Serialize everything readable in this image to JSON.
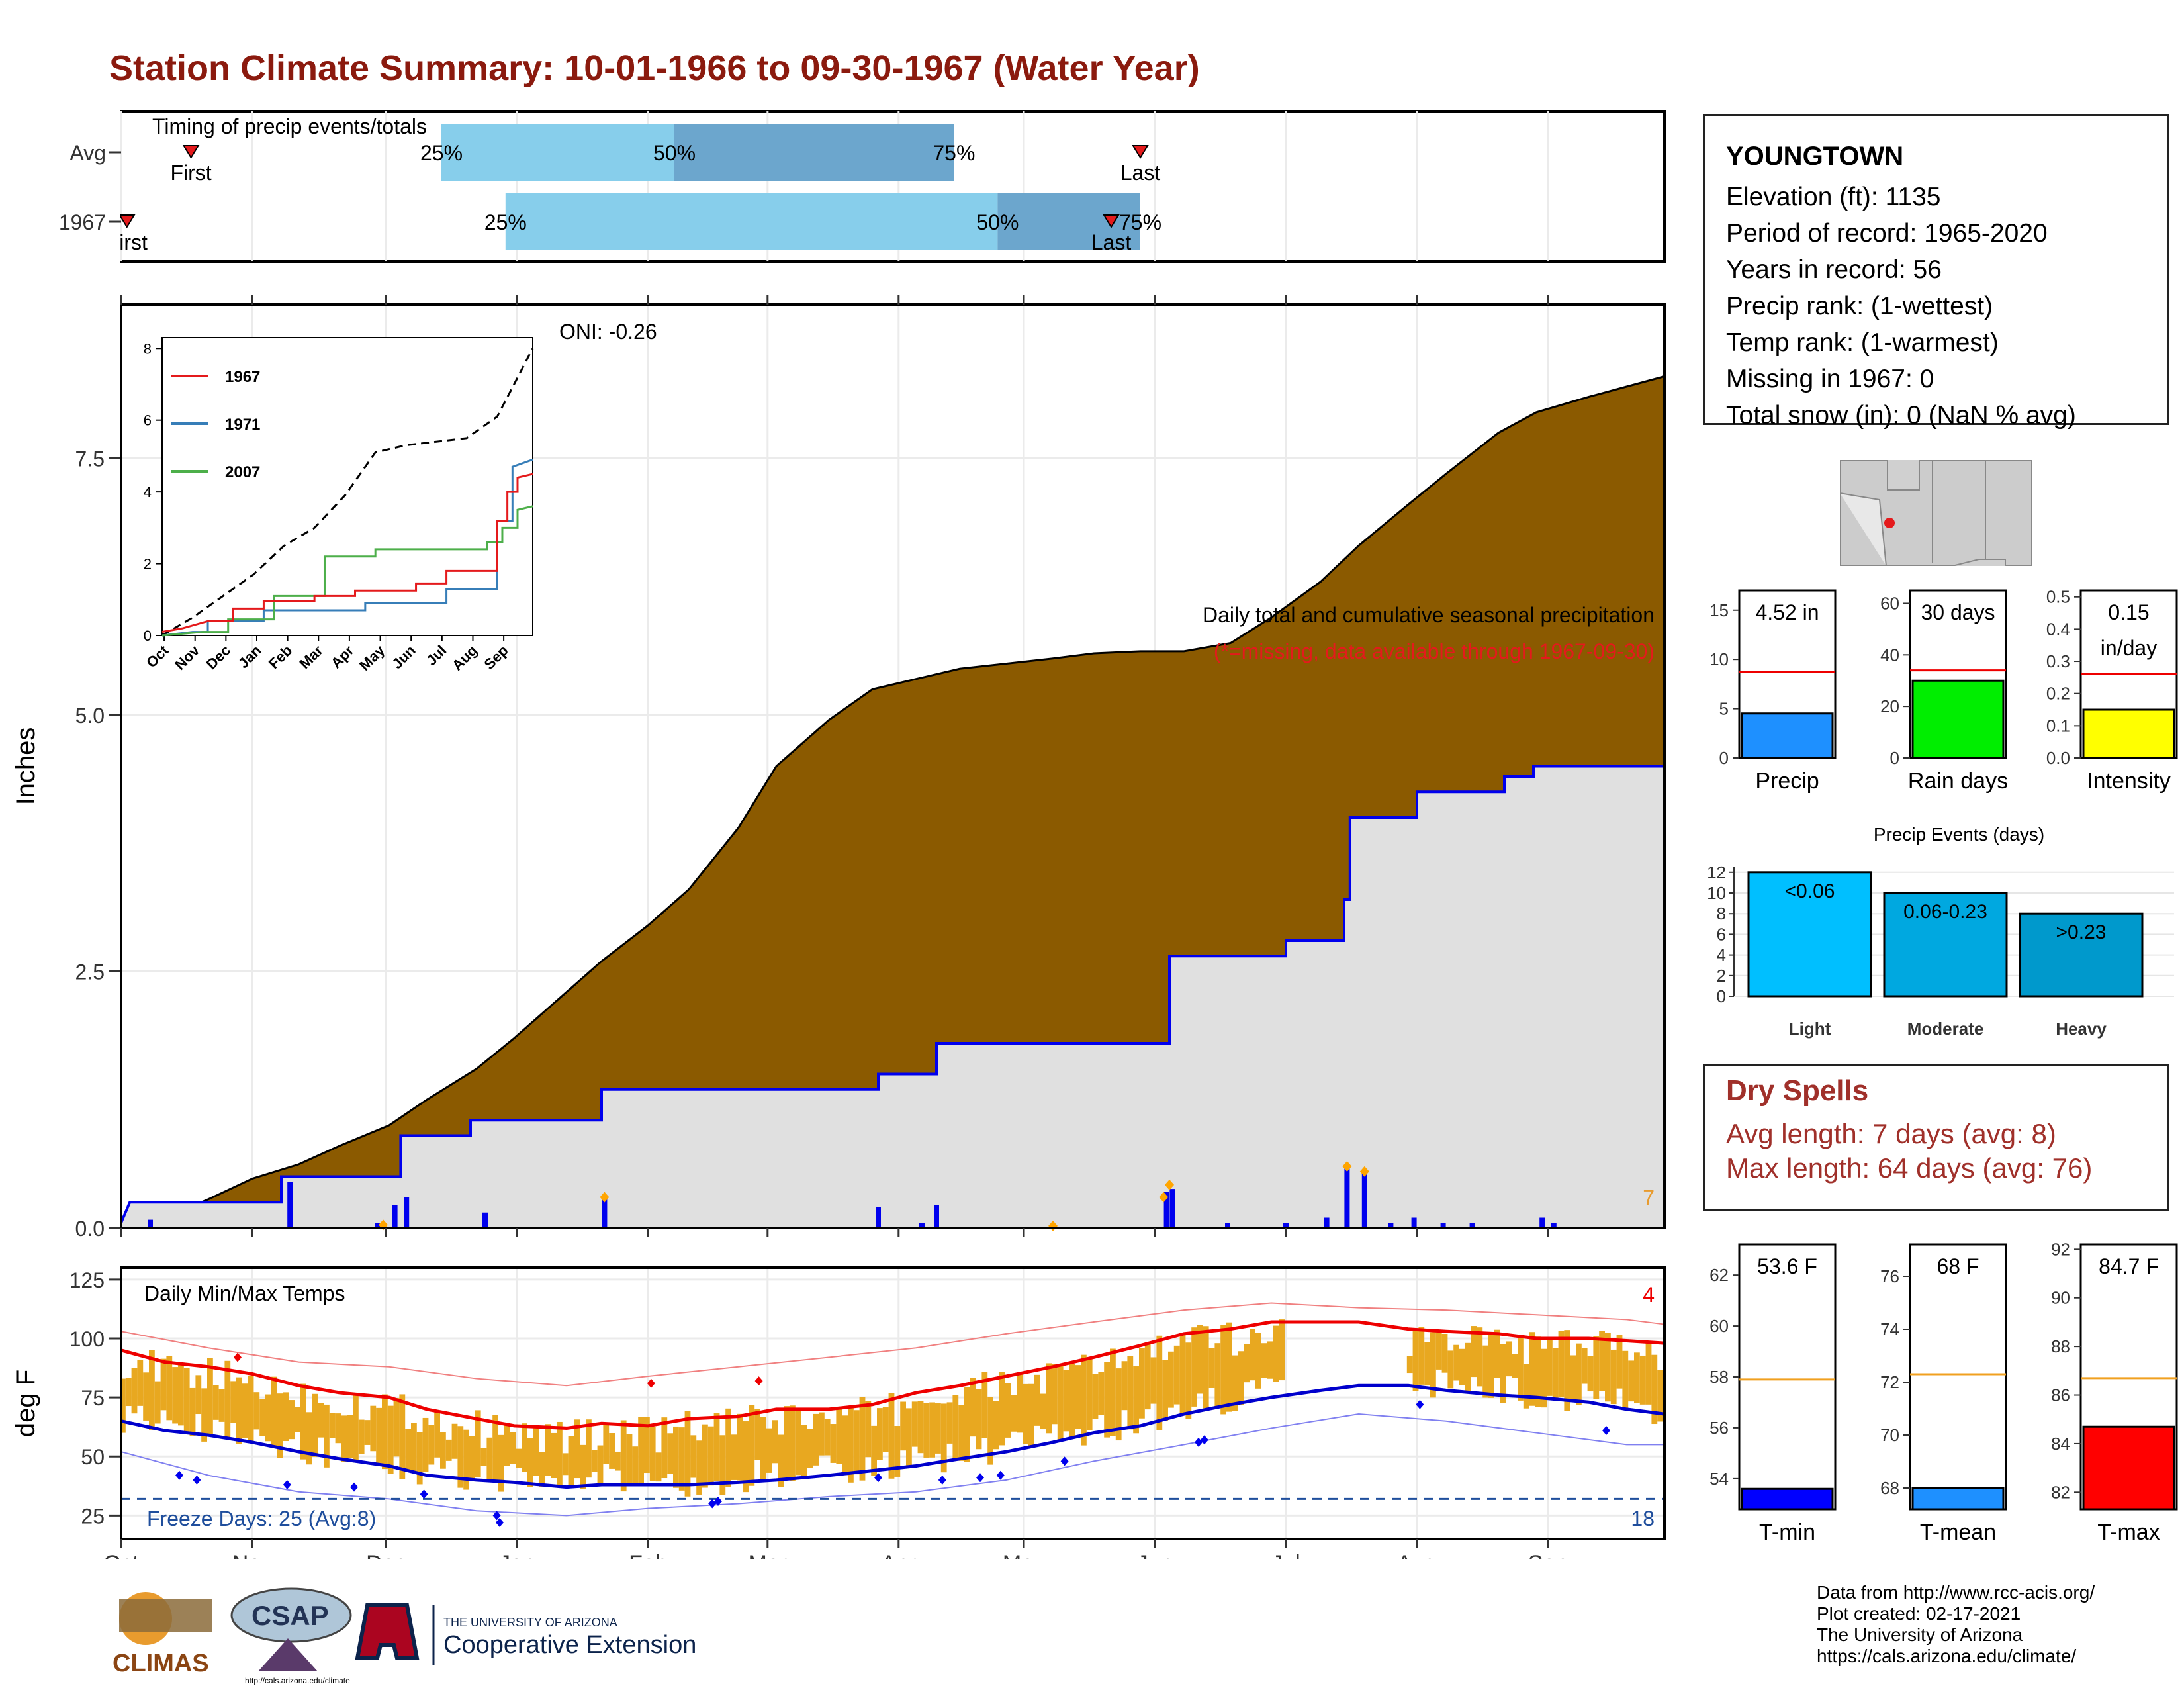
{
  "title": "Station Climate Summary: 10-01-1966 to 09-30-1967 (Water Year)",
  "months": [
    "Oct",
    "Nov",
    "Dec",
    "Jan",
    "Feb",
    "Mar",
    "Apr",
    "May",
    "Jun",
    "Jul",
    "Aug",
    "Sep"
  ],
  "timing": {
    "label": "Timing of precip events/totals",
    "rows": [
      {
        "name": "Avg",
        "first_label": "First",
        "first_day": 24,
        "last_label": "Last",
        "last_day": 350,
        "q25_day": 110,
        "q50_day": 190,
        "q75_day": 286,
        "q25_label": "25%",
        "q50_label": "50%",
        "q75_label": "75%"
      },
      {
        "name": "1967",
        "first_label": "First",
        "first_day": 2,
        "last_label": "Last",
        "last_day": 340,
        "q25_day": 132,
        "q50_day": 301,
        "q75_day": 350,
        "q25_label": "25%",
        "q50_label": "50%",
        "q75_label": "75%"
      }
    ]
  },
  "precip": {
    "ylabel": "Inches",
    "note1": "Daily total and cumulative seasonal precipitation",
    "note2": "(*=missing, data available through 1967-09-30)",
    "oni": "ONI: -0.26",
    "corner_value": "7",
    "yticks": [
      0.0,
      2.5,
      5.0,
      7.5
    ],
    "ytick_labels": [
      "0.0",
      "2.5",
      "5.0",
      "7.5"
    ],
    "ylim": [
      0,
      9
    ],
    "cum_avg": [
      [
        0,
        0
      ],
      [
        15,
        0.1
      ],
      [
        30,
        0.28
      ],
      [
        45,
        0.48
      ],
      [
        61,
        0.62
      ],
      [
        75,
        0.8
      ],
      [
        92,
        1.0
      ],
      [
        105,
        1.25
      ],
      [
        122,
        1.55
      ],
      [
        135,
        1.85
      ],
      [
        153,
        2.3
      ],
      [
        165,
        2.6
      ],
      [
        181,
        2.95
      ],
      [
        195,
        3.3
      ],
      [
        212,
        3.9
      ],
      [
        225,
        4.5
      ],
      [
        243,
        4.95
      ],
      [
        258,
        5.25
      ],
      [
        273,
        5.35
      ],
      [
        288,
        5.45
      ],
      [
        304,
        5.5
      ],
      [
        320,
        5.55
      ],
      [
        334,
        5.6
      ],
      [
        350,
        5.62
      ],
      [
        365,
        5.62
      ],
      [
        381,
        5.7
      ],
      [
        395,
        5.95
      ],
      [
        412,
        6.3
      ],
      [
        425,
        6.65
      ],
      [
        442,
        7.05
      ],
      [
        455,
        7.35
      ],
      [
        473,
        7.75
      ],
      [
        486,
        7.95
      ],
      [
        504,
        8.1
      ],
      [
        517,
        8.2
      ],
      [
        530,
        8.3
      ]
    ],
    "cum_obs": [
      [
        0,
        0.05
      ],
      [
        3,
        0.25
      ],
      [
        55,
        0.25
      ],
      [
        55,
        0.5
      ],
      [
        96,
        0.5
      ],
      [
        96,
        0.9
      ],
      [
        120,
        0.9
      ],
      [
        120,
        1.05
      ],
      [
        165,
        1.05
      ],
      [
        165,
        1.35
      ],
      [
        260,
        1.35
      ],
      [
        260,
        1.5
      ],
      [
        280,
        1.5
      ],
      [
        280,
        1.8
      ],
      [
        360,
        1.8
      ],
      [
        360,
        2.65
      ],
      [
        400,
        2.65
      ],
      [
        400,
        2.8
      ],
      [
        420,
        2.8
      ],
      [
        420,
        3.2
      ],
      [
        422,
        3.2
      ],
      [
        422,
        4.0
      ],
      [
        445,
        4.0
      ],
      [
        445,
        4.25
      ],
      [
        475,
        4.25
      ],
      [
        475,
        4.4
      ],
      [
        485,
        4.4
      ],
      [
        485,
        4.5
      ],
      [
        530,
        4.5
      ]
    ],
    "daily": [
      [
        10,
        0.08
      ],
      [
        58,
        0.45
      ],
      [
        88,
        0.05
      ],
      [
        94,
        0.22
      ],
      [
        98,
        0.3
      ],
      [
        125,
        0.15
      ],
      [
        166,
        0.28
      ],
      [
        260,
        0.2
      ],
      [
        275,
        0.05
      ],
      [
        280,
        0.22
      ],
      [
        359,
        0.35
      ],
      [
        361,
        0.38
      ],
      [
        380,
        0.05
      ],
      [
        400,
        0.05
      ],
      [
        414,
        0.1
      ],
      [
        421,
        0.6
      ],
      [
        427,
        0.55
      ],
      [
        436,
        0.05
      ],
      [
        444,
        0.1
      ],
      [
        454,
        0.05
      ],
      [
        464,
        0.05
      ],
      [
        488,
        0.1
      ],
      [
        492,
        0.05
      ]
    ],
    "daily_flags": [
      [
        90,
        0.03
      ],
      [
        166,
        0.3
      ],
      [
        358,
        0.3
      ],
      [
        360,
        0.42
      ],
      [
        421,
        0.6
      ],
      [
        427,
        0.55
      ],
      [
        320,
        0.02
      ]
    ]
  },
  "inset": {
    "legend": [
      "1967",
      "1971",
      "2007"
    ],
    "colors": [
      "#E41A1C",
      "#377EB8",
      "#4DAF4A"
    ],
    "yticks": [
      0,
      2,
      4,
      6,
      8
    ],
    "ytick_labels": [
      "0",
      "2",
      "4",
      "6",
      "8"
    ],
    "xlabels": [
      "Oct",
      "Nov",
      "Dec",
      "Jan",
      "Feb",
      "Mar",
      "Apr",
      "May",
      "Jun",
      "Jul",
      "Aug",
      "Sep"
    ],
    "avg_max": [
      [
        0,
        0
      ],
      [
        30,
        0.5
      ],
      [
        60,
        1.1
      ],
      [
        90,
        1.7
      ],
      [
        120,
        2.5
      ],
      [
        150,
        3.0
      ],
      [
        180,
        3.9
      ],
      [
        210,
        5.1
      ],
      [
        240,
        5.3
      ],
      [
        270,
        5.4
      ],
      [
        300,
        5.5
      ],
      [
        330,
        6.1
      ],
      [
        365,
        8.0
      ]
    ],
    "s1967": [
      [
        0,
        0.1
      ],
      [
        20,
        0.2
      ],
      [
        45,
        0.4
      ],
      [
        70,
        0.4
      ],
      [
        70,
        0.75
      ],
      [
        100,
        0.75
      ],
      [
        100,
        0.95
      ],
      [
        150,
        0.95
      ],
      [
        150,
        1.1
      ],
      [
        190,
        1.1
      ],
      [
        190,
        1.25
      ],
      [
        250,
        1.25
      ],
      [
        250,
        1.45
      ],
      [
        280,
        1.45
      ],
      [
        280,
        1.8
      ],
      [
        330,
        1.8
      ],
      [
        330,
        3.2
      ],
      [
        340,
        3.2
      ],
      [
        340,
        4.0
      ],
      [
        350,
        4.0
      ],
      [
        350,
        4.4
      ],
      [
        365,
        4.5
      ]
    ],
    "s1971": [
      [
        0,
        0
      ],
      [
        30,
        0.1
      ],
      [
        45,
        0.1
      ],
      [
        45,
        0.4
      ],
      [
        100,
        0.4
      ],
      [
        100,
        0.7
      ],
      [
        200,
        0.7
      ],
      [
        200,
        0.9
      ],
      [
        280,
        0.9
      ],
      [
        280,
        1.3
      ],
      [
        330,
        1.3
      ],
      [
        330,
        3.2
      ],
      [
        345,
        3.2
      ],
      [
        345,
        4.7
      ],
      [
        365,
        4.9
      ]
    ],
    "s2007": [
      [
        0,
        0
      ],
      [
        40,
        0.1
      ],
      [
        65,
        0.1
      ],
      [
        65,
        0.45
      ],
      [
        110,
        0.45
      ],
      [
        110,
        1.1
      ],
      [
        160,
        1.1
      ],
      [
        160,
        2.2
      ],
      [
        210,
        2.2
      ],
      [
        210,
        2.4
      ],
      [
        320,
        2.4
      ],
      [
        320,
        2.6
      ],
      [
        335,
        2.6
      ],
      [
        335,
        3.0
      ],
      [
        350,
        3.0
      ],
      [
        350,
        3.5
      ],
      [
        365,
        3.6
      ]
    ]
  },
  "temps": {
    "label": "Daily Min/Max Temps",
    "ylabel": "deg F",
    "freeze_label": "Freeze Days: 25 (Avg:8)",
    "freeze_value": "18",
    "corner_value": "4",
    "yticks": [
      25,
      50,
      75,
      100,
      125
    ],
    "ytick_labels": [
      "25",
      "50",
      "75",
      "100",
      "125"
    ],
    "ylim": [
      15,
      130
    ],
    "freeze_line": 32,
    "avg_max": [
      [
        0,
        95
      ],
      [
        15,
        90
      ],
      [
        30,
        88
      ],
      [
        45,
        85
      ],
      [
        61,
        80
      ],
      [
        75,
        77
      ],
      [
        92,
        75
      ],
      [
        105,
        70
      ],
      [
        122,
        66
      ],
      [
        135,
        63
      ],
      [
        153,
        62
      ],
      [
        165,
        64
      ],
      [
        181,
        63
      ],
      [
        195,
        66
      ],
      [
        212,
        67
      ],
      [
        225,
        70
      ],
      [
        243,
        70
      ],
      [
        258,
        72
      ],
      [
        273,
        77
      ],
      [
        288,
        80
      ],
      [
        304,
        84
      ],
      [
        320,
        88
      ],
      [
        334,
        92
      ],
      [
        350,
        97
      ],
      [
        365,
        102
      ],
      [
        381,
        104
      ],
      [
        395,
        107
      ],
      [
        412,
        107
      ],
      [
        425,
        107
      ],
      [
        442,
        104
      ],
      [
        455,
        103
      ],
      [
        473,
        102
      ],
      [
        486,
        100
      ],
      [
        504,
        100
      ],
      [
        517,
        99
      ],
      [
        530,
        98
      ]
    ],
    "avg_min": [
      [
        0,
        65
      ],
      [
        15,
        61
      ],
      [
        30,
        59
      ],
      [
        45,
        56
      ],
      [
        61,
        52
      ],
      [
        75,
        49
      ],
      [
        92,
        46
      ],
      [
        105,
        42
      ],
      [
        122,
        40
      ],
      [
        135,
        39
      ],
      [
        153,
        37
      ],
      [
        165,
        38
      ],
      [
        181,
        38
      ],
      [
        195,
        38
      ],
      [
        212,
        39
      ],
      [
        225,
        40
      ],
      [
        243,
        42
      ],
      [
        258,
        44
      ],
      [
        273,
        46
      ],
      [
        288,
        49
      ],
      [
        304,
        52
      ],
      [
        320,
        56
      ],
      [
        334,
        60
      ],
      [
        350,
        63
      ],
      [
        365,
        68
      ],
      [
        381,
        72
      ],
      [
        395,
        75
      ],
      [
        412,
        78
      ],
      [
        425,
        80
      ],
      [
        442,
        80
      ],
      [
        455,
        78
      ],
      [
        473,
        76
      ],
      [
        486,
        75
      ],
      [
        504,
        73
      ],
      [
        517,
        70
      ],
      [
        530,
        68
      ]
    ],
    "rec_max": [
      [
        0,
        103
      ],
      [
        30,
        96
      ],
      [
        61,
        90
      ],
      [
        92,
        88
      ],
      [
        122,
        83
      ],
      [
        153,
        80
      ],
      [
        181,
        84
      ],
      [
        212,
        88
      ],
      [
        243,
        92
      ],
      [
        273,
        96
      ],
      [
        304,
        102
      ],
      [
        334,
        107
      ],
      [
        365,
        112
      ],
      [
        395,
        115
      ],
      [
        425,
        113
      ],
      [
        455,
        112
      ],
      [
        486,
        110
      ],
      [
        517,
        108
      ],
      [
        530,
        106
      ]
    ],
    "rec_min": [
      [
        0,
        52
      ],
      [
        30,
        42
      ],
      [
        61,
        35
      ],
      [
        92,
        32
      ],
      [
        122,
        27
      ],
      [
        153,
        25
      ],
      [
        181,
        28
      ],
      [
        212,
        30
      ],
      [
        243,
        33
      ],
      [
        273,
        35
      ],
      [
        304,
        40
      ],
      [
        334,
        48
      ],
      [
        365,
        55
      ],
      [
        395,
        62
      ],
      [
        425,
        68
      ],
      [
        455,
        65
      ],
      [
        486,
        60
      ],
      [
        517,
        55
      ],
      [
        530,
        55
      ]
    ],
    "obs_hi_base": [
      [
        0,
        88
      ],
      [
        61,
        80
      ],
      [
        122,
        68
      ],
      [
        181,
        68
      ],
      [
        243,
        76
      ],
      [
        304,
        90
      ],
      [
        365,
        100
      ],
      [
        395,
        null
      ],
      [
        442,
        null
      ],
      [
        442,
        100
      ],
      [
        530,
        90
      ]
    ],
    "obs_lo_base": [
      [
        0,
        55
      ],
      [
        61,
        45
      ],
      [
        122,
        35
      ],
      [
        181,
        40
      ],
      [
        243,
        48
      ],
      [
        304,
        62
      ],
      [
        365,
        70
      ],
      [
        395,
        null
      ],
      [
        442,
        null
      ],
      [
        442,
        72
      ],
      [
        530,
        62
      ]
    ],
    "gap": [
      400,
      442
    ],
    "hi_records": [
      [
        40,
        92
      ],
      [
        182,
        81
      ],
      [
        219,
        82
      ]
    ],
    "lo_records": [
      [
        20,
        42
      ],
      [
        26,
        40
      ],
      [
        57,
        38
      ],
      [
        80,
        37
      ],
      [
        104,
        34
      ],
      [
        129,
        25
      ],
      [
        130,
        22
      ],
      [
        203,
        30
      ],
      [
        205,
        31
      ],
      [
        260,
        41
      ],
      [
        282,
        40
      ],
      [
        295,
        41
      ],
      [
        302,
        42
      ],
      [
        324,
        48
      ],
      [
        370,
        56
      ],
      [
        372,
        57
      ],
      [
        446,
        72
      ],
      [
        510,
        61
      ]
    ]
  },
  "bars_top": [
    {
      "name": "Precip",
      "label": "4.52 in",
      "yticks": [
        0,
        5,
        10,
        15
      ],
      "ytick_labels": [
        "0",
        "5",
        "10",
        "15"
      ],
      "ymax": 17,
      "value": 4.52,
      "avg": 8.7,
      "color": "#1E90FF"
    },
    {
      "name": "Rain days",
      "label": "30 days",
      "yticks": [
        0,
        20,
        40,
        60
      ],
      "ytick_labels": [
        "0",
        "20",
        "40",
        "60"
      ],
      "ymax": 65,
      "value": 30,
      "avg": 34,
      "color": "#00EE00"
    },
    {
      "name": "Intensity",
      "label": "0.15 in/day",
      "yticks": [
        0,
        0.1,
        0.2,
        0.3,
        0.4,
        0.5
      ],
      "ytick_labels": [
        "0.0",
        "0.1",
        "0.2",
        "0.3",
        "0.4",
        "0.5"
      ],
      "ymax": 0.52,
      "value": 0.15,
      "avg": 0.26,
      "color": "#FFFF00"
    }
  ],
  "events": {
    "title": "Precip Events (days)",
    "categories": [
      "Light",
      "Moderate",
      "Heavy"
    ],
    "bar_labels": [
      "<0.06",
      "0.06-0.23",
      ">0.23"
    ],
    "values": [
      12,
      10,
      8
    ],
    "colors": [
      "#00BFFF",
      "#00A8E0",
      "#0099CC"
    ],
    "yticks": [
      0,
      2,
      4,
      6,
      8,
      10,
      12
    ],
    "ytick_labels": [
      "0",
      "2",
      "4",
      "6",
      "8",
      "10",
      "12"
    ],
    "ymax": 12.5
  },
  "station": {
    "name": "YOUNGTOWN",
    "lines": [
      "Elevation (ft): 1135",
      "Period of record: 1965-2020",
      "Years in record: 56",
      "Precip rank:  (1-wettest)",
      "Temp rank:  (1-warmest)",
      "Missing in 1967: 0",
      "Total snow (in): 0 (NaN % avg)"
    ]
  },
  "dry_spells": {
    "title": "Dry Spells",
    "avg": "Avg length: 7 days (avg: 8)",
    "max": "Max length: 64 days (avg: 76)"
  },
  "bars_temp": [
    {
      "name": "T-min",
      "label": "53.6 F",
      "yticks": [
        54,
        56,
        58,
        60,
        62
      ],
      "ytick_labels": [
        "54",
        "56",
        "58",
        "60",
        "62"
      ],
      "ymin": 52.8,
      "ymax": 63.2,
      "value": 53.6,
      "avg": 57.9,
      "color": "#0000FF"
    },
    {
      "name": "T-mean",
      "label": "68 F",
      "yticks": [
        68,
        70,
        72,
        74,
        76
      ],
      "ytick_labels": [
        "68",
        "70",
        "72",
        "74",
        "76"
      ],
      "ymin": 67.2,
      "ymax": 77.2,
      "value": 68,
      "avg": 72.3,
      "color": "#1E90FF"
    },
    {
      "name": "T-max",
      "label": "84.7 F",
      "yticks": [
        82,
        84,
        86,
        88,
        90,
        92
      ],
      "ytick_labels": [
        "82",
        "84",
        "86",
        "88",
        "90",
        "92"
      ],
      "ymin": 81.3,
      "ymax": 92.2,
      "value": 84.7,
      "avg": 86.7,
      "color": "#FF0000"
    }
  ],
  "logos": {
    "climas": "CLIMAS",
    "csap": "CSAP",
    "csap_url": "http://cals.arizona.edu/climate",
    "ua_small": "THE UNIVERSITY OF ARIZONA",
    "ua_big": "Cooperative Extension"
  },
  "credits": [
    "Data from http://www.rcc-acis.org/",
    "Plot created: 02-17-2021",
    "The University of Arizona",
    "https://cals.arizona.edu/climate/"
  ]
}
